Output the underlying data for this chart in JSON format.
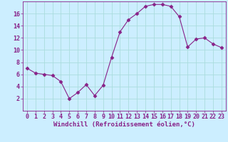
{
  "x": [
    0,
    1,
    2,
    3,
    4,
    5,
    6,
    7,
    8,
    9,
    10,
    11,
    12,
    13,
    14,
    15,
    16,
    17,
    18,
    19,
    20,
    21,
    22,
    23
  ],
  "y": [
    7,
    6.2,
    6,
    5.8,
    4.8,
    2,
    3,
    4.3,
    2.5,
    4.2,
    8.8,
    13,
    15,
    16,
    17.2,
    17.5,
    17.5,
    17.2,
    15.5,
    10.5,
    11.8,
    12,
    11,
    10.4
  ],
  "line_color": "#882288",
  "marker": "D",
  "marker_size": 2.5,
  "bg_color": "#cceeff",
  "grid_color": "#aadddd",
  "xlabel": "Windchill (Refroidissement éolien,°C)",
  "ylabel": "",
  "title": "",
  "xlim": [
    -0.5,
    23.5
  ],
  "ylim": [
    0,
    18
  ],
  "yticks": [
    2,
    4,
    6,
    8,
    10,
    12,
    14,
    16
  ],
  "xticks": [
    0,
    1,
    2,
    3,
    4,
    5,
    6,
    7,
    8,
    9,
    10,
    11,
    12,
    13,
    14,
    15,
    16,
    17,
    18,
    19,
    20,
    21,
    22,
    23
  ],
  "xlabel_fontsize": 6.5,
  "tick_fontsize": 6,
  "axis_color": "#882288",
  "line_width": 0.8
}
